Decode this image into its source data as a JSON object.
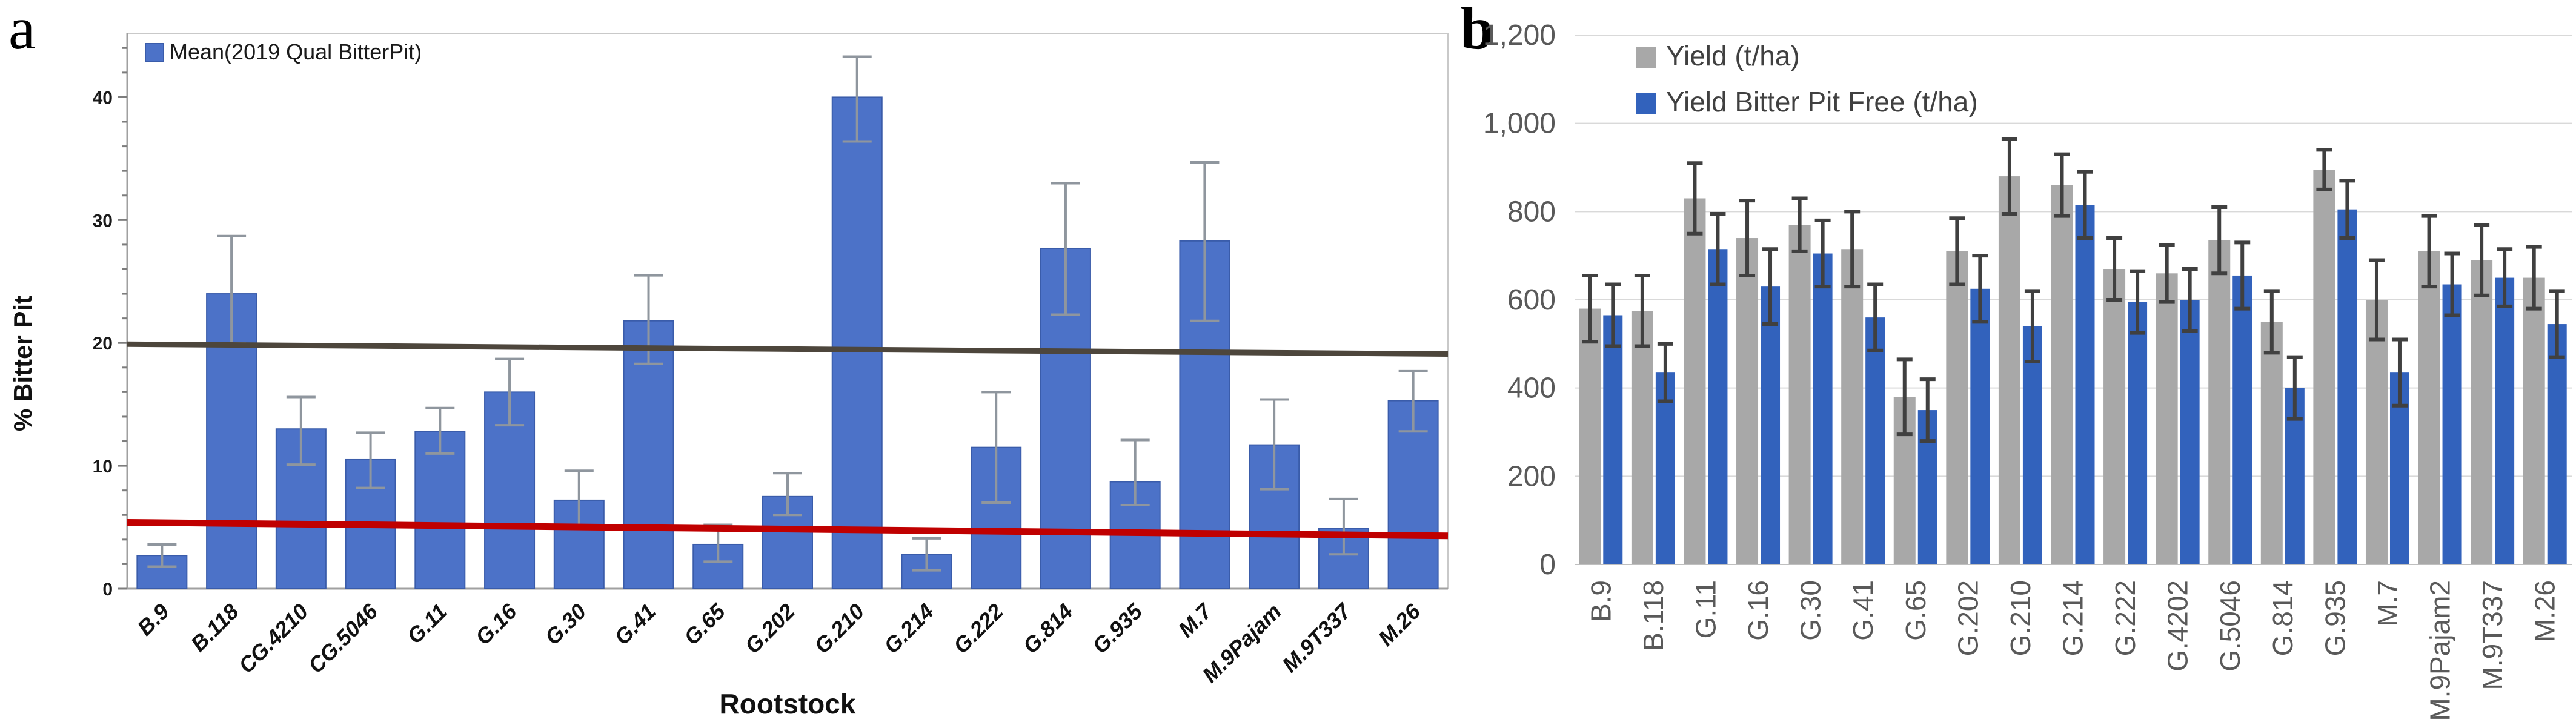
{
  "figure": {
    "panel_a_label": "a",
    "panel_b_label": "b"
  },
  "chart_data": [
    {
      "id": "bitter-pit-by-rootstock",
      "type": "bar",
      "title": "",
      "xlabel": "Rootstock",
      "ylabel": "% Bitter Pit",
      "legend": [
        "Mean(2019 Qual BitterPit)"
      ],
      "legend_position": "top-left",
      "grid": false,
      "ylim": [
        0,
        45
      ],
      "ytick_values": [
        0,
        10,
        20,
        30,
        40
      ],
      "ytick_labels": [
        "0",
        "10",
        "20",
        "30",
        "40"
      ],
      "minor_tick_step": 2,
      "categories": [
        "B.9",
        "B.118",
        "CG.4210",
        "CG.5046",
        "G.11",
        "G.16",
        "G.30",
        "G.41",
        "G.65",
        "G.202",
        "G.210",
        "G.214",
        "G.222",
        "G.814",
        "G.935",
        "M.7",
        "M.9Pajam",
        "M.9T337",
        "M.26"
      ],
      "values": [
        2.7,
        24.0,
        13.0,
        10.5,
        12.8,
        16.0,
        7.2,
        21.8,
        3.6,
        7.5,
        40.0,
        2.8,
        11.5,
        27.7,
        8.7,
        28.3,
        11.7,
        4.9,
        15.3
      ],
      "error_plus": [
        0.9,
        4.7,
        2.6,
        2.2,
        1.9,
        2.7,
        2.4,
        3.7,
        1.6,
        1.9,
        3.3,
        1.3,
        4.5,
        5.3,
        3.4,
        6.4,
        3.7,
        2.4,
        2.4
      ],
      "error_minus": [
        0.9,
        4.0,
        2.9,
        2.3,
        1.8,
        2.7,
        2.2,
        3.5,
        1.4,
        1.5,
        3.6,
        1.3,
        4.5,
        5.4,
        1.9,
        6.5,
        3.6,
        2.1,
        2.5
      ],
      "reference_lines": [
        {
          "name": "dark-threshold-line",
          "color": "#4d463c",
          "y_start": 19.9,
          "y_end": 19.1,
          "width": 9
        },
        {
          "name": "red-threshold-line",
          "color": "#c00000",
          "y_start": 5.4,
          "y_end": 4.3,
          "width": 11
        }
      ],
      "bar_color": "#4C72C8",
      "bar_border_color": "#3a5caa",
      "error_bar_color": "#8f969e",
      "axis_color": "#a0a0a0",
      "box_color": "#c9c9c9",
      "text_color": "#1a1a1a"
    },
    {
      "id": "yield-by-rootstock",
      "type": "bar",
      "title": "",
      "xlabel": "",
      "ylabel": "",
      "legend_position": "top-left",
      "grid": true,
      "ylim": [
        0,
        1200
      ],
      "ytick_values": [
        0,
        200,
        400,
        600,
        800,
        1000,
        1200
      ],
      "ytick_labels": [
        "0",
        "200",
        "400",
        "600",
        "800",
        "1,000",
        "1,200"
      ],
      "categories": [
        "B.9",
        "B.118",
        "G.11",
        "G.16",
        "G.30",
        "G.41",
        "G.65",
        "G.202",
        "G.210",
        "G.214",
        "G.222",
        "G.4202",
        "G.5046",
        "G.814",
        "G.935",
        "M.7",
        "M.9Pajam2",
        "M.9T337",
        "M.26"
      ],
      "series": [
        {
          "name": "Yield (t/ha)",
          "color": "#a8a8a8",
          "values": [
            580,
            575,
            830,
            740,
            770,
            715,
            380,
            710,
            880,
            860,
            670,
            660,
            735,
            550,
            895,
            600,
            710,
            690,
            650
          ],
          "errors": [
            75,
            80,
            80,
            85,
            60,
            85,
            85,
            75,
            85,
            70,
            70,
            65,
            75,
            70,
            45,
            90,
            80,
            80,
            70
          ]
        },
        {
          "name": "Yield Bitter Pit Free (t/ha)",
          "color": "#3262BC",
          "values": [
            565,
            435,
            715,
            630,
            705,
            560,
            350,
            625,
            540,
            815,
            595,
            600,
            655,
            400,
            805,
            435,
            635,
            650,
            545
          ],
          "errors": [
            70,
            65,
            80,
            85,
            75,
            75,
            70,
            75,
            80,
            75,
            70,
            70,
            75,
            70,
            65,
            75,
            70,
            65,
            75
          ]
        }
      ],
      "gridline_color": "#d9d9d9",
      "baseline_color": "#bfbfbf",
      "error_bar_color": "#404040",
      "text_color": "#595959",
      "legend_text_color": "#404040"
    }
  ]
}
